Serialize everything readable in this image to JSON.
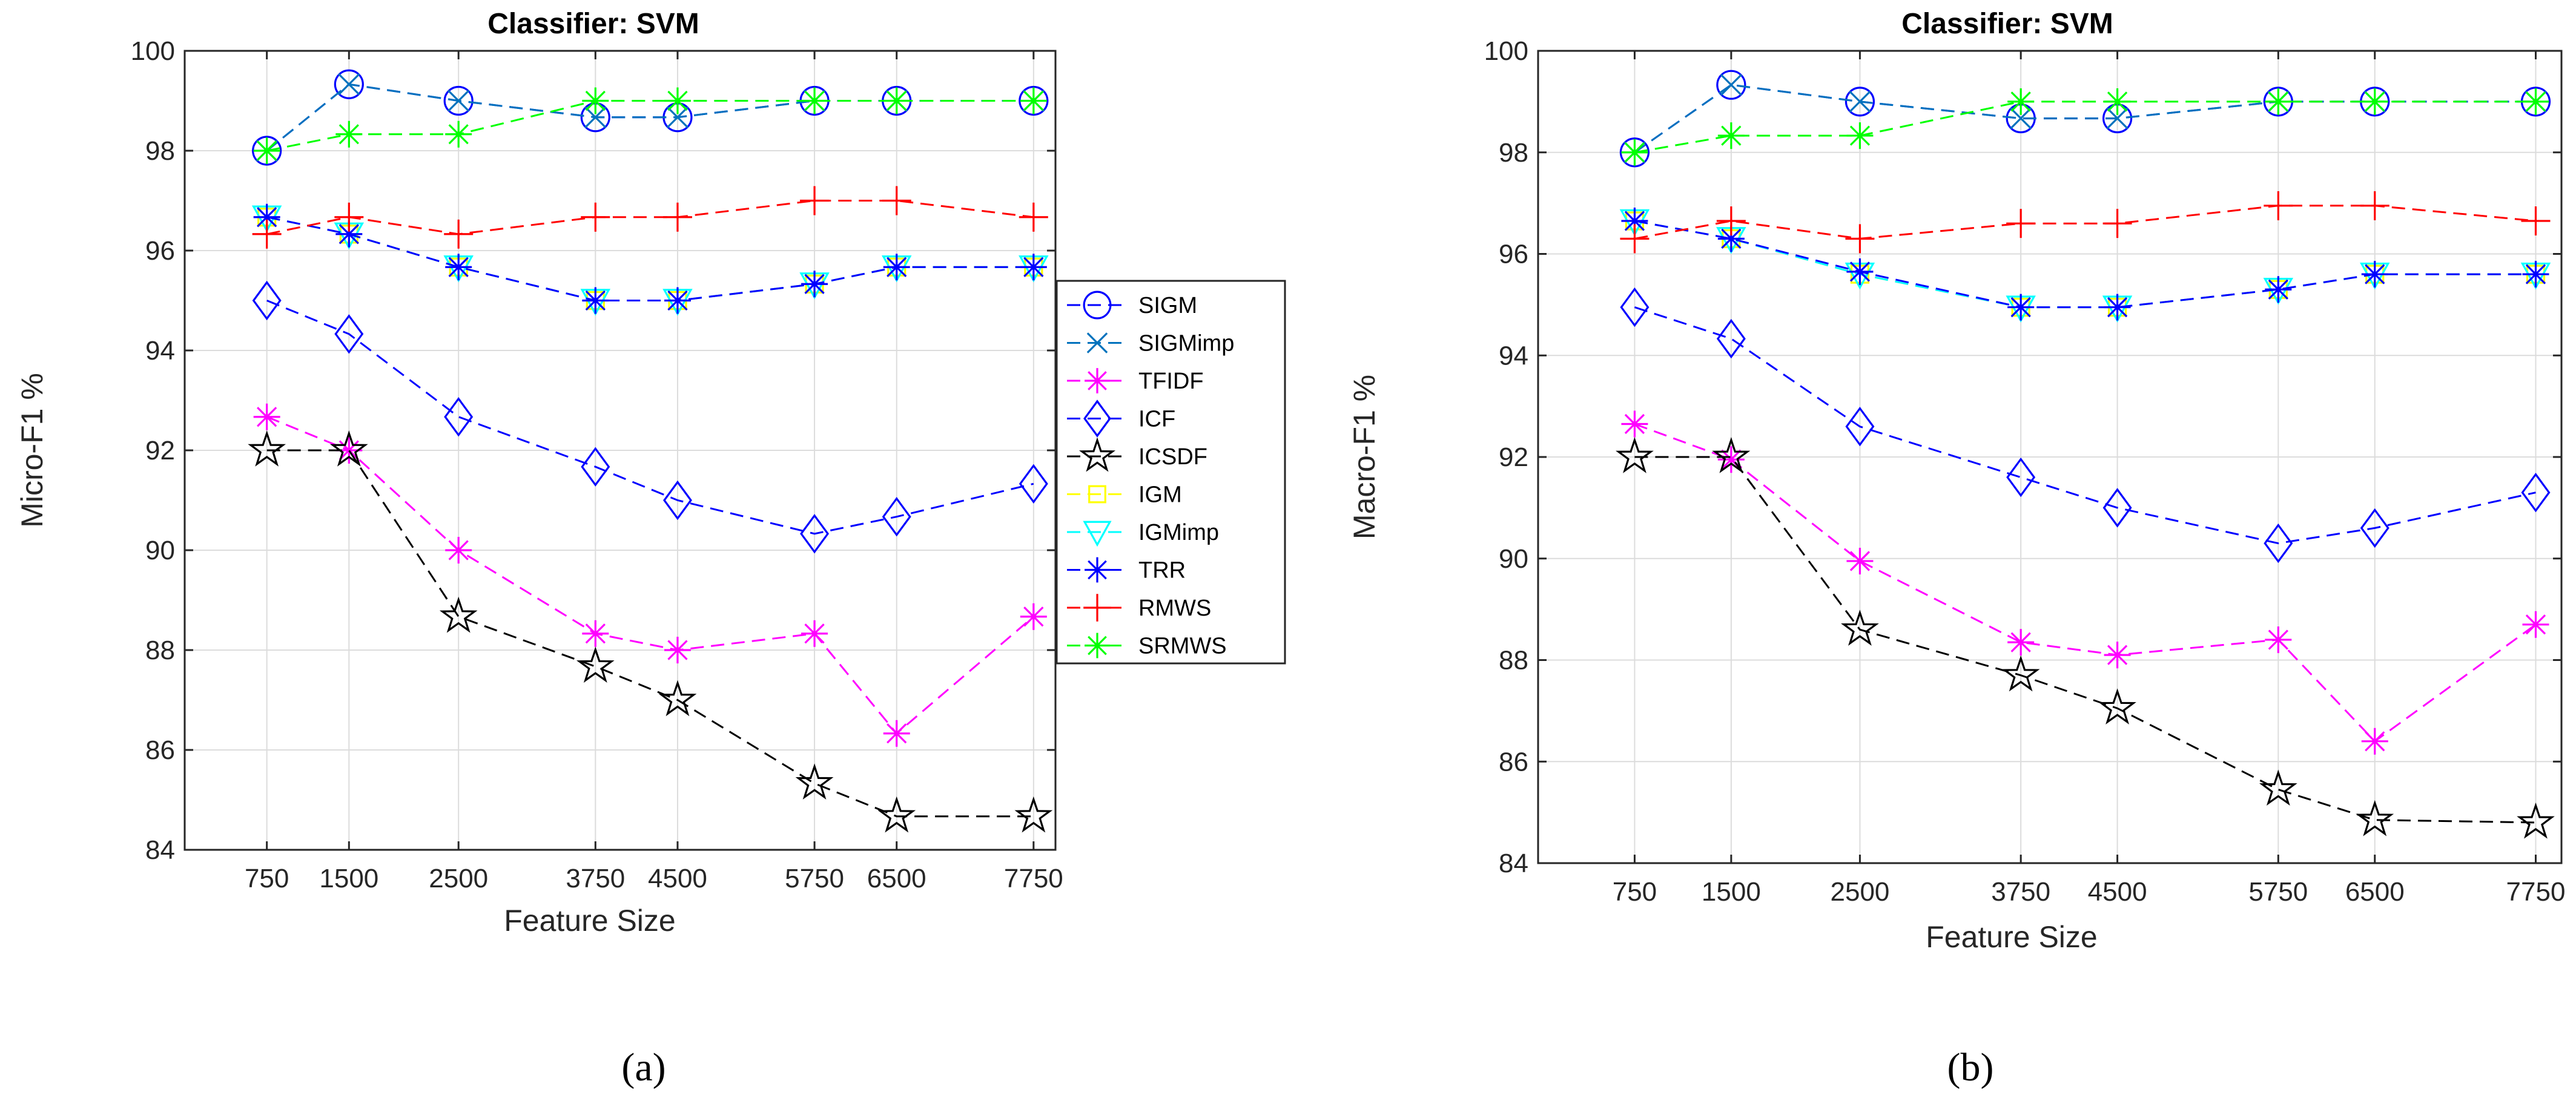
{
  "colors": {
    "SIGM": "#0000ff",
    "SIGMimp": "#0072bd",
    "TFIDF": "#ff00ff",
    "ICF": "#0000ff",
    "ICSDF": "#000000",
    "IGM": "#ffff00",
    "IGMimp": "#00ffff",
    "TRR": "#0000ff",
    "RMWS": "#ff0000",
    "SRMWS": "#00ff00",
    "grid": "#dcdcdc"
  },
  "chart_data": [
    {
      "id": "a",
      "type": "line",
      "caption": "(a)",
      "title": "Classifier: SVM",
      "xlabel": "Feature Size",
      "ylabel": "Micro-F1 %",
      "x": [
        750,
        1500,
        2500,
        3750,
        4500,
        5750,
        6500,
        7750
      ],
      "xtick_labels": [
        "750",
        "1500",
        "2500",
        "3750",
        "4500",
        "5750",
        "6500",
        "7750"
      ],
      "xlim": [
        0,
        7950
      ],
      "ylim": [
        84,
        100
      ],
      "yticks": [
        84,
        86,
        88,
        90,
        92,
        94,
        96,
        98,
        100
      ],
      "grid": true,
      "legend_placement": "outside-right",
      "series": [
        {
          "name": "SIGM",
          "marker": "circle",
          "dash": "long",
          "values": [
            98.0,
            99.33,
            99.0,
            98.67,
            98.67,
            99.0,
            99.0,
            99.0
          ]
        },
        {
          "name": "SIGMimp",
          "marker": "x",
          "dash": "long",
          "values": [
            98.0,
            99.33,
            99.0,
            98.67,
            98.67,
            99.0,
            99.0,
            99.0
          ]
        },
        {
          "name": "TFIDF",
          "marker": "asterisk",
          "dash": "long",
          "values": [
            92.67,
            92.0,
            90.0,
            88.33,
            88.0,
            88.33,
            86.33,
            88.67
          ]
        },
        {
          "name": "ICF",
          "marker": "diamond",
          "dash": "long",
          "values": [
            95.0,
            94.33,
            92.67,
            91.67,
            91.0,
            90.33,
            90.67,
            91.33
          ]
        },
        {
          "name": "ICSDF",
          "marker": "pentagram",
          "dash": "long",
          "values": [
            92.0,
            92.0,
            88.67,
            87.67,
            87.0,
            85.33,
            84.67,
            84.67
          ]
        },
        {
          "name": "IGM",
          "marker": "square",
          "dash": "long",
          "values": [
            96.67,
            96.33,
            95.67,
            95.0,
            95.0,
            95.33,
            95.67,
            95.67
          ]
        },
        {
          "name": "IGMimp",
          "marker": "triangle-down",
          "dash": "long",
          "values": [
            96.67,
            96.33,
            95.67,
            95.0,
            95.0,
            95.33,
            95.67,
            95.67
          ]
        },
        {
          "name": "TRR",
          "marker": "asterisk",
          "dash": "long",
          "values": [
            96.67,
            96.33,
            95.67,
            95.0,
            95.0,
            95.33,
            95.67,
            95.67
          ]
        },
        {
          "name": "RMWS",
          "marker": "plus",
          "dash": "long",
          "values": [
            96.33,
            96.67,
            96.33,
            96.67,
            96.67,
            97.0,
            97.0,
            96.67
          ]
        },
        {
          "name": "SRMWS",
          "marker": "asterisk",
          "dash": "long",
          "values": [
            98.0,
            98.33,
            98.33,
            99.0,
            99.0,
            99.0,
            99.0,
            99.0
          ]
        }
      ]
    },
    {
      "id": "b",
      "type": "line",
      "caption": "(b)",
      "title": "Classifier: SVM",
      "xlabel": "Feature Size",
      "ylabel": "Macro-F1 %",
      "x": [
        750,
        1500,
        2500,
        3750,
        4500,
        5750,
        6500,
        7750
      ],
      "xtick_labels": [
        "750",
        "1500",
        "2500",
        "3750",
        "4500",
        "5750",
        "6500",
        "7750"
      ],
      "xlim": [
        0,
        7950
      ],
      "ylim": [
        84,
        100
      ],
      "yticks": [
        84,
        86,
        88,
        90,
        92,
        94,
        96,
        98,
        100
      ],
      "grid": true,
      "legend_placement": "none",
      "series": [
        {
          "name": "SIGM",
          "marker": "circle",
          "dash": "long",
          "values": [
            98.0,
            99.33,
            99.0,
            98.67,
            98.67,
            99.0,
            99.0,
            99.0
          ]
        },
        {
          "name": "SIGMimp",
          "marker": "x",
          "dash": "long",
          "values": [
            98.0,
            99.33,
            99.0,
            98.67,
            98.67,
            99.0,
            99.0,
            99.0
          ]
        },
        {
          "name": "TFIDF",
          "marker": "asterisk",
          "dash": "long",
          "values": [
            92.65,
            91.95,
            89.95,
            88.35,
            88.1,
            88.4,
            86.4,
            88.7
          ]
        },
        {
          "name": "ICF",
          "marker": "diamond",
          "dash": "long",
          "values": [
            94.95,
            94.33,
            92.6,
            91.6,
            91.0,
            90.3,
            90.6,
            91.3
          ]
        },
        {
          "name": "ICSDF",
          "marker": "pentagram",
          "dash": "long",
          "values": [
            92.0,
            92.0,
            88.6,
            87.7,
            87.05,
            85.45,
            84.85,
            84.8
          ]
        },
        {
          "name": "IGM",
          "marker": "square",
          "dash": "long",
          "values": [
            96.65,
            96.3,
            95.6,
            94.95,
            94.95,
            95.3,
            95.6,
            95.6
          ]
        },
        {
          "name": "IGMimp",
          "marker": "triangle-down",
          "dash": "long",
          "values": [
            96.65,
            96.3,
            95.6,
            94.95,
            94.95,
            95.3,
            95.6,
            95.6
          ]
        },
        {
          "name": "TRR",
          "marker": "asterisk",
          "dash": "long",
          "values": [
            96.65,
            96.3,
            95.65,
            94.95,
            94.95,
            95.3,
            95.6,
            95.6
          ]
        },
        {
          "name": "RMWS",
          "marker": "plus",
          "dash": "long",
          "values": [
            96.3,
            96.65,
            96.3,
            96.6,
            96.6,
            96.95,
            96.95,
            96.65
          ]
        },
        {
          "name": "SRMWS",
          "marker": "asterisk",
          "dash": "long",
          "values": [
            98.0,
            98.33,
            98.33,
            99.0,
            99.0,
            99.0,
            99.0,
            99.0
          ]
        }
      ]
    }
  ]
}
